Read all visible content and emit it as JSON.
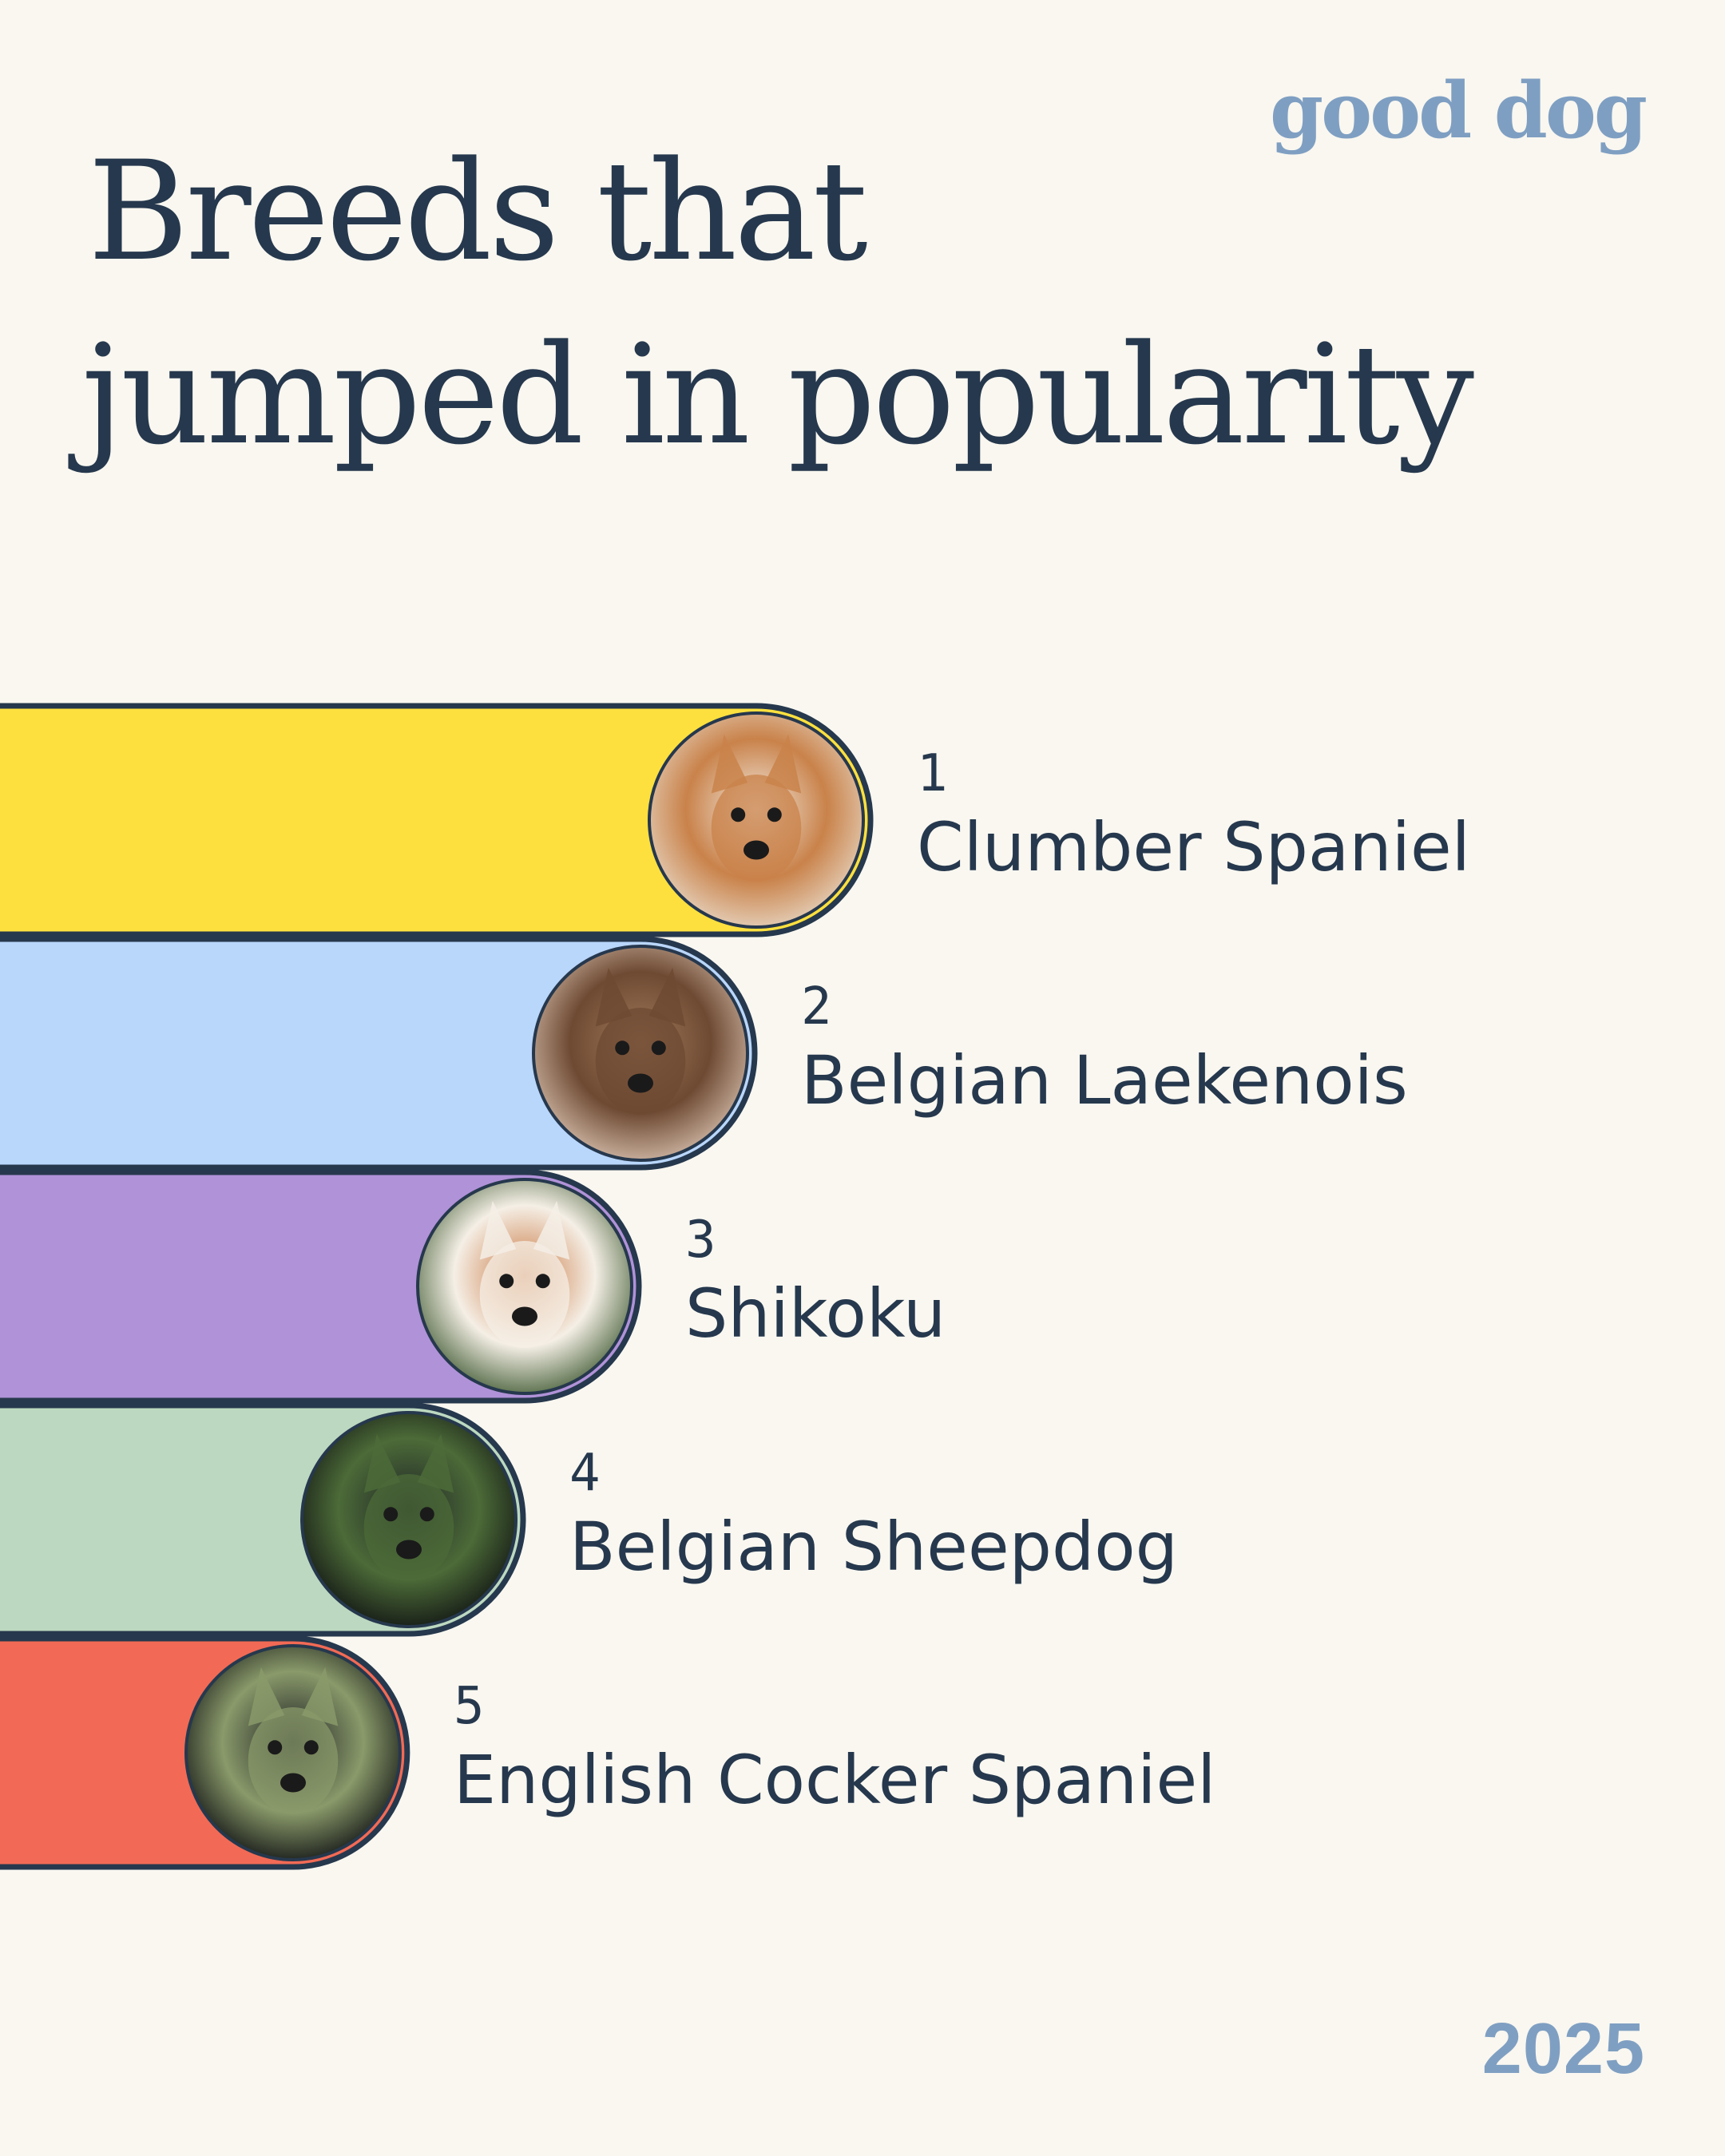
{
  "brand": {
    "logo_text": "good dog"
  },
  "header": {
    "title_line1": "Breeds that",
    "title_line2": "jumped in popularity"
  },
  "footer": {
    "year": "2025"
  },
  "chart_data": {
    "type": "bar",
    "title": "Breeds that jumped in popularity",
    "orientation": "horizontal",
    "categories": [
      "Clumber Spaniel",
      "Belgian Laekenois",
      "Shikoku",
      "Belgian Sheepdog",
      "English Cocker Spaniel"
    ],
    "ranks": [
      "1",
      "2",
      "3",
      "4",
      "5"
    ],
    "values": [
      5,
      4,
      3,
      2,
      1
    ],
    "colors": [
      "#fde03e",
      "#b9d6fb",
      "#b092d8",
      "#bcd8c0",
      "#f26a55"
    ],
    "outline_color": "#26384d",
    "grid": false,
    "legend": "none",
    "photo_icons": [
      "clumber-spaniel-photo-icon",
      "belgian-laekenois-photo-icon",
      "shikoku-photo-icon",
      "belgian-sheepdog-photo-icon",
      "english-cocker-spaniel-photo-icon"
    ]
  }
}
